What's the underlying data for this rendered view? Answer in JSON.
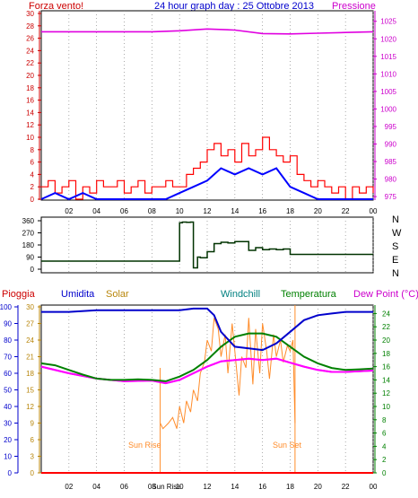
{
  "header": {
    "left": "Forza vento!",
    "center": "24 hour graph day : 25 Ottobre 2013",
    "right": "Pressione"
  },
  "panel2": {
    "compass": [
      "N",
      "W",
      "S",
      "E",
      "N"
    ]
  },
  "panel3": {
    "labels": {
      "pioggia": "Pioggia",
      "umidita": "Umidita",
      "solar": "Solar",
      "windchill": "Windchill",
      "temperatura": "Temperatura",
      "dewpoint": "Dew Point (°C)"
    },
    "sunrise_label": "Sun Rise",
    "sunset_label": "Sun Set"
  },
  "x_ticks": [
    "02",
    "04",
    "06",
    "08",
    "10",
    "12",
    "14",
    "16",
    "18",
    "20",
    "22",
    "00"
  ],
  "x_ticks_bottom": [
    "02",
    "04",
    "06",
    "08",
    "Sun Rise",
    "10",
    "12",
    "14",
    "16",
    "18",
    "20",
    "22",
    "00"
  ],
  "colors": {
    "wind": "#ff0000",
    "avgwind": "#0000ff",
    "pressure": "#e000e0",
    "direction": "#003300",
    "humidity": "#0000cc",
    "solar": "#ff8c2a",
    "windchill": "#ff00ff",
    "temperature": "#008000",
    "dewpoint": "#ff00ff",
    "rain": "#ff0000",
    "axis_left": "#cc0000",
    "axis_right_pressure": "#cc00cc",
    "axis_right_temp": "#008000",
    "sunline": "#ff8c2a"
  },
  "chart_data": [
    {
      "type": "line",
      "title": "24 hour graph day : 25 Ottobre 2013",
      "y_left_label": "Forza vento!",
      "y_right_label": "Pressione",
      "x_ticks": [
        "02",
        "04",
        "06",
        "08",
        "10",
        "12",
        "14",
        "16",
        "18",
        "20",
        "22",
        "00"
      ],
      "y_left_ticks": [
        0,
        2,
        4,
        6,
        8,
        10,
        12,
        14,
        16,
        18,
        20,
        22,
        24,
        26,
        28,
        30
      ],
      "y_right_ticks": [
        975,
        980,
        985,
        990,
        995,
        1000,
        1005,
        1010,
        1015,
        1020,
        1025
      ],
      "ylim_left": [
        0,
        30
      ],
      "ylim_right": [
        974,
        1028
      ],
      "series": [
        {
          "name": "wind_gust",
          "x_hours": [
            0,
            0.5,
            1,
            1.5,
            2,
            2.5,
            3,
            3.5,
            4,
            4.5,
            5,
            5.5,
            6,
            6.5,
            7,
            7.5,
            8,
            8.5,
            9,
            9.5,
            10,
            10.5,
            11,
            11.5,
            12,
            12.5,
            13,
            13.5,
            14,
            14.5,
            15,
            15.5,
            16,
            16.5,
            17,
            17.5,
            18,
            18.5,
            19,
            19.5,
            20,
            20.5,
            21,
            21.5,
            22,
            22.5,
            23,
            23.5,
            24
          ],
          "values": [
            2,
            3,
            1,
            2,
            3,
            0,
            2,
            1,
            3,
            2,
            2,
            3,
            1,
            2,
            3,
            1,
            2,
            2,
            3,
            2,
            2,
            4,
            5,
            6,
            8,
            9,
            7,
            8,
            6,
            9,
            7,
            8,
            10,
            8,
            7,
            6,
            7,
            4,
            3,
            2,
            3,
            2,
            1,
            2,
            0,
            2,
            1,
            2,
            1
          ]
        },
        {
          "name": "wind_avg",
          "x_hours": [
            0,
            1,
            2,
            3,
            4,
            5,
            6,
            7,
            8,
            9,
            10,
            11,
            12,
            13,
            14,
            15,
            16,
            17,
            18,
            19,
            20,
            21,
            22,
            23,
            24
          ],
          "values": [
            0,
            1,
            0,
            1,
            0,
            0,
            0,
            0,
            0,
            0,
            1,
            2,
            3,
            5,
            4,
            5,
            4,
            5,
            2,
            1,
            0,
            0,
            0,
            0,
            0
          ]
        },
        {
          "name": "pressure",
          "x_hours": [
            0,
            2,
            4,
            6,
            8,
            10,
            12,
            14,
            16,
            18,
            20,
            22,
            24
          ],
          "values": [
            1022,
            1022,
            1022,
            1022,
            1022,
            1022.3,
            1022.8,
            1022.5,
            1021.5,
            1021.4,
            1021.6,
            1021.8,
            1022
          ]
        }
      ]
    },
    {
      "type": "line",
      "title": "",
      "y_left_ticks": [
        0,
        90,
        180,
        270,
        360
      ],
      "ylim": [
        0,
        360
      ],
      "series": [
        {
          "name": "wind_direction",
          "x_hours": [
            0,
            9.9,
            10,
            10.2,
            10.5,
            10.8,
            11,
            11.3,
            11.5,
            12,
            12.5,
            13,
            13.5,
            14,
            14.5,
            15,
            15.5,
            16,
            16.5,
            17,
            17.5,
            18,
            19,
            20,
            21,
            22,
            23,
            24
          ],
          "values": [
            60,
            60,
            345,
            350,
            348,
            350,
            10,
            90,
            85,
            130,
            190,
            200,
            195,
            205,
            205,
            140,
            160,
            145,
            150,
            145,
            150,
            110,
            110,
            110,
            110,
            110,
            110,
            110
          ]
        }
      ]
    },
    {
      "type": "line",
      "title": "",
      "x_ticks": [
        "02",
        "04",
        "06",
        "08",
        "Sun Rise",
        "10",
        "12",
        "14",
        "16",
        "18",
        "20",
        "22",
        "00"
      ],
      "y_left_ticks": [
        0,
        10,
        20,
        30,
        40,
        50,
        60,
        70,
        80,
        90,
        100
      ],
      "y_mid_ticks": [
        0,
        3,
        6,
        9,
        12,
        15,
        18,
        21,
        24,
        27,
        30
      ],
      "y_right_ticks": [
        0,
        2,
        4,
        6,
        8,
        10,
        12,
        14,
        16,
        18,
        20,
        22,
        24
      ],
      "ylim_left": [
        0,
        100
      ],
      "ylim_temp": [
        0,
        25
      ],
      "sunrise_hour": 8.6,
      "sunset_hour": 18.35,
      "series": [
        {
          "name": "Umidita",
          "x_hours": [
            0,
            2,
            4,
            6,
            8,
            9,
            10,
            11,
            12,
            12.5,
            13,
            14,
            15,
            16,
            17,
            18,
            19,
            20,
            21,
            22,
            24
          ],
          "values": [
            97,
            97,
            98,
            98,
            98,
            98,
            98,
            99,
            99,
            95,
            85,
            76,
            75,
            74,
            78,
            85,
            92,
            95,
            96,
            97,
            97
          ]
        },
        {
          "name": "Temperatura",
          "x_hours": [
            0,
            1,
            2,
            3,
            4,
            5,
            6,
            7,
            8,
            9,
            10,
            11,
            12,
            13,
            14,
            15,
            16,
            17,
            18,
            19,
            20,
            21,
            22,
            23,
            24
          ],
          "values": [
            16.5,
            16.2,
            15.5,
            14.8,
            14.2,
            14.0,
            14.0,
            14.1,
            14.0,
            13.8,
            14.5,
            15.5,
            17.0,
            19.0,
            20.5,
            21.0,
            21.0,
            20.5,
            19.0,
            17.5,
            16.5,
            15.8,
            15.5,
            15.6,
            15.7
          ]
        },
        {
          "name": "Dew Point",
          "x_hours": [
            0,
            2,
            4,
            6,
            8,
            9,
            10,
            11,
            12,
            13,
            14,
            15,
            16,
            17,
            18,
            19,
            20,
            21,
            22,
            24
          ],
          "values": [
            16.0,
            15.0,
            14.2,
            13.8,
            13.9,
            13.5,
            14.0,
            15.0,
            16.0,
            16.8,
            17.0,
            17.2,
            17.0,
            17.2,
            16.6,
            16.0,
            15.5,
            15.2,
            15.2,
            15.4
          ]
        },
        {
          "name": "Windchill",
          "x_hours": [
            0,
            2,
            4,
            6,
            8,
            9,
            10,
            11,
            12,
            13,
            14,
            15,
            16,
            17,
            18,
            19,
            20,
            21,
            22,
            24
          ],
          "values": [
            16.0,
            15.0,
            14.2,
            13.8,
            13.9,
            13.5,
            14.0,
            15.0,
            16.0,
            16.8,
            17.0,
            17.2,
            17.0,
            17.2,
            16.6,
            16.0,
            15.5,
            15.2,
            15.2,
            15.4
          ]
        },
        {
          "name": "Solar",
          "x_hours": [
            8.6,
            8.8,
            9.2,
            9.5,
            9.8,
            10.0,
            10.3,
            10.5,
            10.8,
            11.0,
            11.3,
            11.5,
            11.8,
            12.0,
            12.3,
            12.5,
            12.8,
            13.0,
            13.3,
            13.5,
            13.8,
            14.0,
            14.3,
            14.5,
            14.8,
            15.0,
            15.3,
            15.5,
            15.8,
            16.0,
            16.3,
            16.5,
            16.8,
            17.0,
            17.3,
            17.5,
            17.8,
            18.0,
            18.2,
            18.35
          ],
          "values": [
            9,
            8,
            9,
            10,
            8,
            12,
            9,
            13,
            11,
            15,
            13,
            18,
            20,
            24,
            22,
            28,
            26,
            21,
            25,
            18,
            27,
            22,
            14,
            21,
            19,
            28,
            16,
            26,
            18,
            27,
            22,
            17,
            25,
            21,
            24,
            20,
            23,
            22,
            24,
            9
          ]
        },
        {
          "name": "Pioggia",
          "x_hours": [
            0,
            24
          ],
          "values": [
            0,
            0
          ]
        }
      ]
    }
  ]
}
